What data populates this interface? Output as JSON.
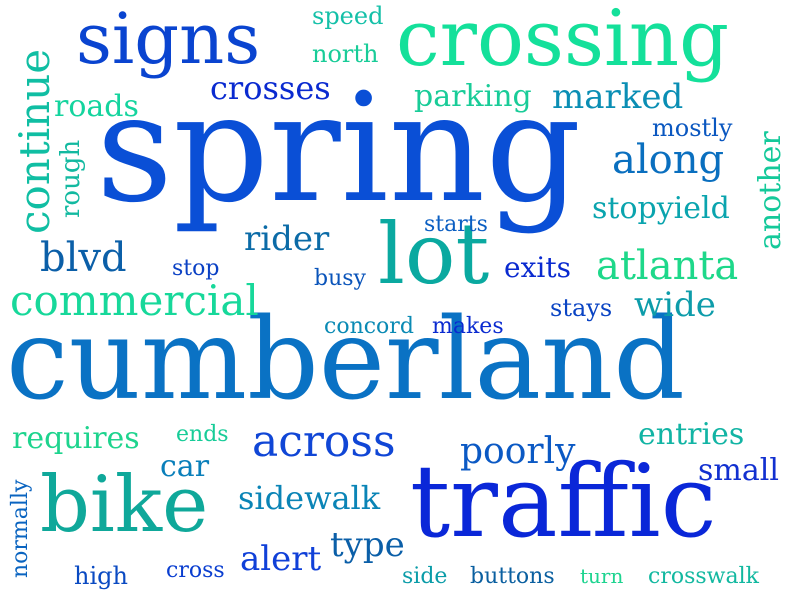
{
  "words": [
    {
      "text": "spring",
      "color": "#0a4fd6"
    },
    {
      "text": "cumberland",
      "color": "#0a72c4"
    },
    {
      "text": "traffic",
      "color": "#0a27d8"
    },
    {
      "text": "crossing",
      "color": "#14e09a"
    },
    {
      "text": "signs",
      "color": "#0a44d0"
    },
    {
      "text": "bike",
      "color": "#0fa89a"
    },
    {
      "text": "lot",
      "color": "#0aa9a0"
    },
    {
      "text": "across",
      "color": "#1046d6"
    },
    {
      "text": "along",
      "color": "#0a6fbf"
    },
    {
      "text": "atlanta",
      "color": "#1ed88a"
    },
    {
      "text": "commercial",
      "color": "#17d89a"
    },
    {
      "text": "continue",
      "color": "#10bea3"
    },
    {
      "text": "blvd",
      "color": "#0b5fa8"
    },
    {
      "text": "rider",
      "color": "#0b6ba7"
    },
    {
      "text": "crosses",
      "color": "#0a2ad0"
    },
    {
      "text": "parking",
      "color": "#19cc98"
    },
    {
      "text": "marked",
      "color": "#0a8eb4"
    },
    {
      "text": "stopyield",
      "color": "#0aa4ae"
    },
    {
      "text": "another",
      "color": "#14c99a"
    },
    {
      "text": "poorly",
      "color": "#0b59c4"
    },
    {
      "text": "entries",
      "color": "#12b4a4"
    },
    {
      "text": "small",
      "color": "#1230d0"
    },
    {
      "text": "sidewalk",
      "color": "#0a84b6"
    },
    {
      "text": "alert",
      "color": "#1040d8"
    },
    {
      "text": "type",
      "color": "#0b5fa8"
    },
    {
      "text": "requires",
      "color": "#1ed48e"
    },
    {
      "text": "car",
      "color": "#0a7fba"
    },
    {
      "text": "wide",
      "color": "#0d9caa"
    },
    {
      "text": "exits",
      "color": "#0a2ad0"
    },
    {
      "text": "roads",
      "color": "#14d49e"
    },
    {
      "text": "rough",
      "color": "#12b9a0"
    },
    {
      "text": "mostly",
      "color": "#0a57c0"
    },
    {
      "text": "north",
      "color": "#19cc98"
    },
    {
      "text": "speed",
      "color": "#14c0a8"
    },
    {
      "text": "starts",
      "color": "#0a5ec2"
    },
    {
      "text": "stop",
      "color": "#0a40c4"
    },
    {
      "text": "busy",
      "color": "#0a54ba"
    },
    {
      "text": "stays",
      "color": "#0a44c4"
    },
    {
      "text": "concord",
      "color": "#0a8ab4"
    },
    {
      "text": "makes",
      "color": "#0a2ad0"
    },
    {
      "text": "ends",
      "color": "#17cc98"
    },
    {
      "text": "normally",
      "color": "#0a64c0"
    },
    {
      "text": "high",
      "color": "#0a4ac2"
    },
    {
      "text": "cross",
      "color": "#0a3ed0"
    },
    {
      "text": "side",
      "color": "#0a9ca8"
    },
    {
      "text": "buttons",
      "color": "#0a5fa0"
    },
    {
      "text": "turn",
      "color": "#1ed490"
    },
    {
      "text": "crosswalk",
      "color": "#12b8a0"
    }
  ]
}
